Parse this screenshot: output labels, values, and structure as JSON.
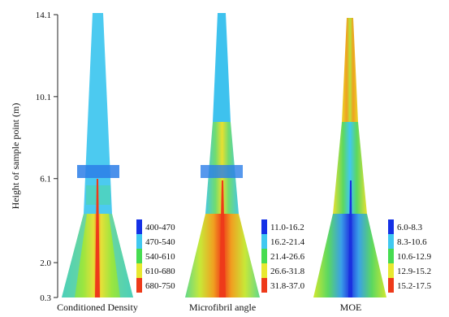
{
  "chart_data": {
    "type": "heatmap",
    "ylabel": "Height of sample point (m)",
    "y_ticks": [
      "0.3",
      "2.0",
      "6.1",
      "10.1",
      "14.1"
    ],
    "y_values": [
      0.3,
      2.0,
      6.1,
      10.1,
      14.1
    ],
    "ylim": [
      0.3,
      14.1
    ],
    "panels": [
      {
        "name": "Conditioned Density",
        "legend": [
          "400-470",
          "470-540",
          "540-610",
          "610-680",
          "680-750"
        ],
        "colors": [
          "#1431e6",
          "#40c8f0",
          "#46dc50",
          "#e8e830",
          "#ee3a1a"
        ],
        "dominant_class": "470-540",
        "lower_stem_class": "540-610",
        "pith_class": "680-750"
      },
      {
        "name": "Microfibril angle",
        "legend": [
          "11.0-16.2",
          "16.2-21.4",
          "21.4-26.6",
          "26.6-31.8",
          "31.8-37.0"
        ],
        "colors": [
          "#1431e6",
          "#40c8f0",
          "#46dc50",
          "#e8e830",
          "#ee3a1a"
        ],
        "dominant_class": "16.2-21.4",
        "lower_stem_class": "21.4-26.6",
        "pith_class": "31.8-37.0"
      },
      {
        "name": "MOE",
        "legend": [
          "6.0-8.3",
          "8.3-10.6",
          "10.6-12.9",
          "12.9-15.2",
          "15.2-17.5"
        ],
        "colors": [
          "#1431e6",
          "#40c8f0",
          "#46dc50",
          "#e8e830",
          "#ee3a1a"
        ],
        "dominant_class": "10.6-12.9",
        "lower_stem_class": "8.3-10.6",
        "pith_class": "6.0-8.3"
      }
    ]
  }
}
